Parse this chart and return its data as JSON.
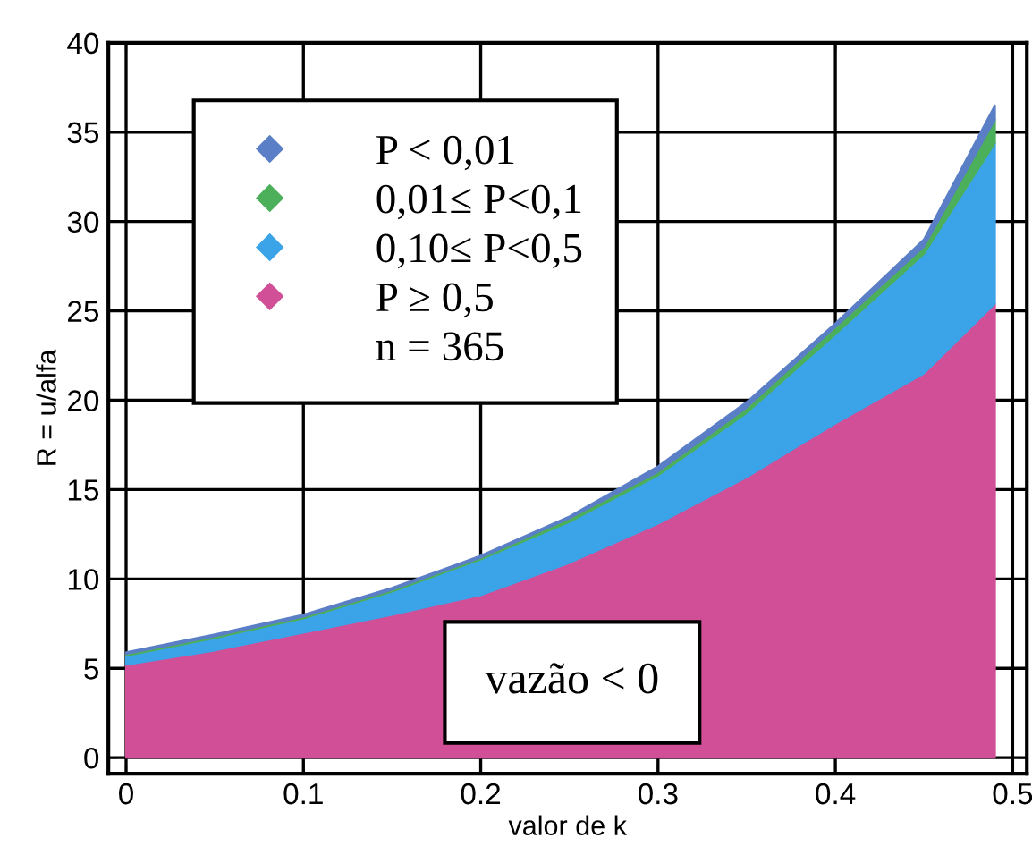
{
  "chart_data": {
    "type": "area",
    "stacked": true,
    "xlabel": "valor de k",
    "ylabel": "R = u/alfa",
    "x": [
      0,
      0.05,
      0.1,
      0.15,
      0.2,
      0.25,
      0.3,
      0.35,
      0.4,
      0.45,
      0.49
    ],
    "series": [
      {
        "name": "P ≥ 0,5",
        "color": "#d04f97",
        "values": [
          5.2,
          6.0,
          7.0,
          8.0,
          9.1,
          10.9,
          13.1,
          15.7,
          18.7,
          21.5,
          25.4
        ]
      },
      {
        "name": "0,10≤ P<0,5",
        "color": "#3ba3e8",
        "values": [
          0.5,
          0.7,
          0.8,
          1.3,
          2.0,
          2.3,
          2.7,
          3.6,
          5.0,
          6.7,
          9.0
        ]
      },
      {
        "name": "0,01≤ P<0,1",
        "color": "#4caf5a",
        "values": [
          0.1,
          0.1,
          0.1,
          0.1,
          0.1,
          0.2,
          0.2,
          0.3,
          0.4,
          0.4,
          1.3
        ]
      },
      {
        "name": "P < 0,01",
        "color": "#5b7fc6",
        "values": [
          0.1,
          0.1,
          0.1,
          0.1,
          0.1,
          0.1,
          0.3,
          0.3,
          0.2,
          0.4,
          0.8
        ]
      }
    ],
    "xlim": [
      -0.01,
      0.508
    ],
    "ylim": [
      -0.9,
      40
    ],
    "xticks": [
      0,
      0.1,
      0.2,
      0.3,
      0.4,
      0.5
    ],
    "yticks": [
      0,
      5,
      10,
      15,
      20,
      25,
      30,
      35,
      40
    ],
    "grid": true,
    "legend": "top left",
    "annotations": [
      "n = 365",
      "vazão < 0"
    ]
  }
}
